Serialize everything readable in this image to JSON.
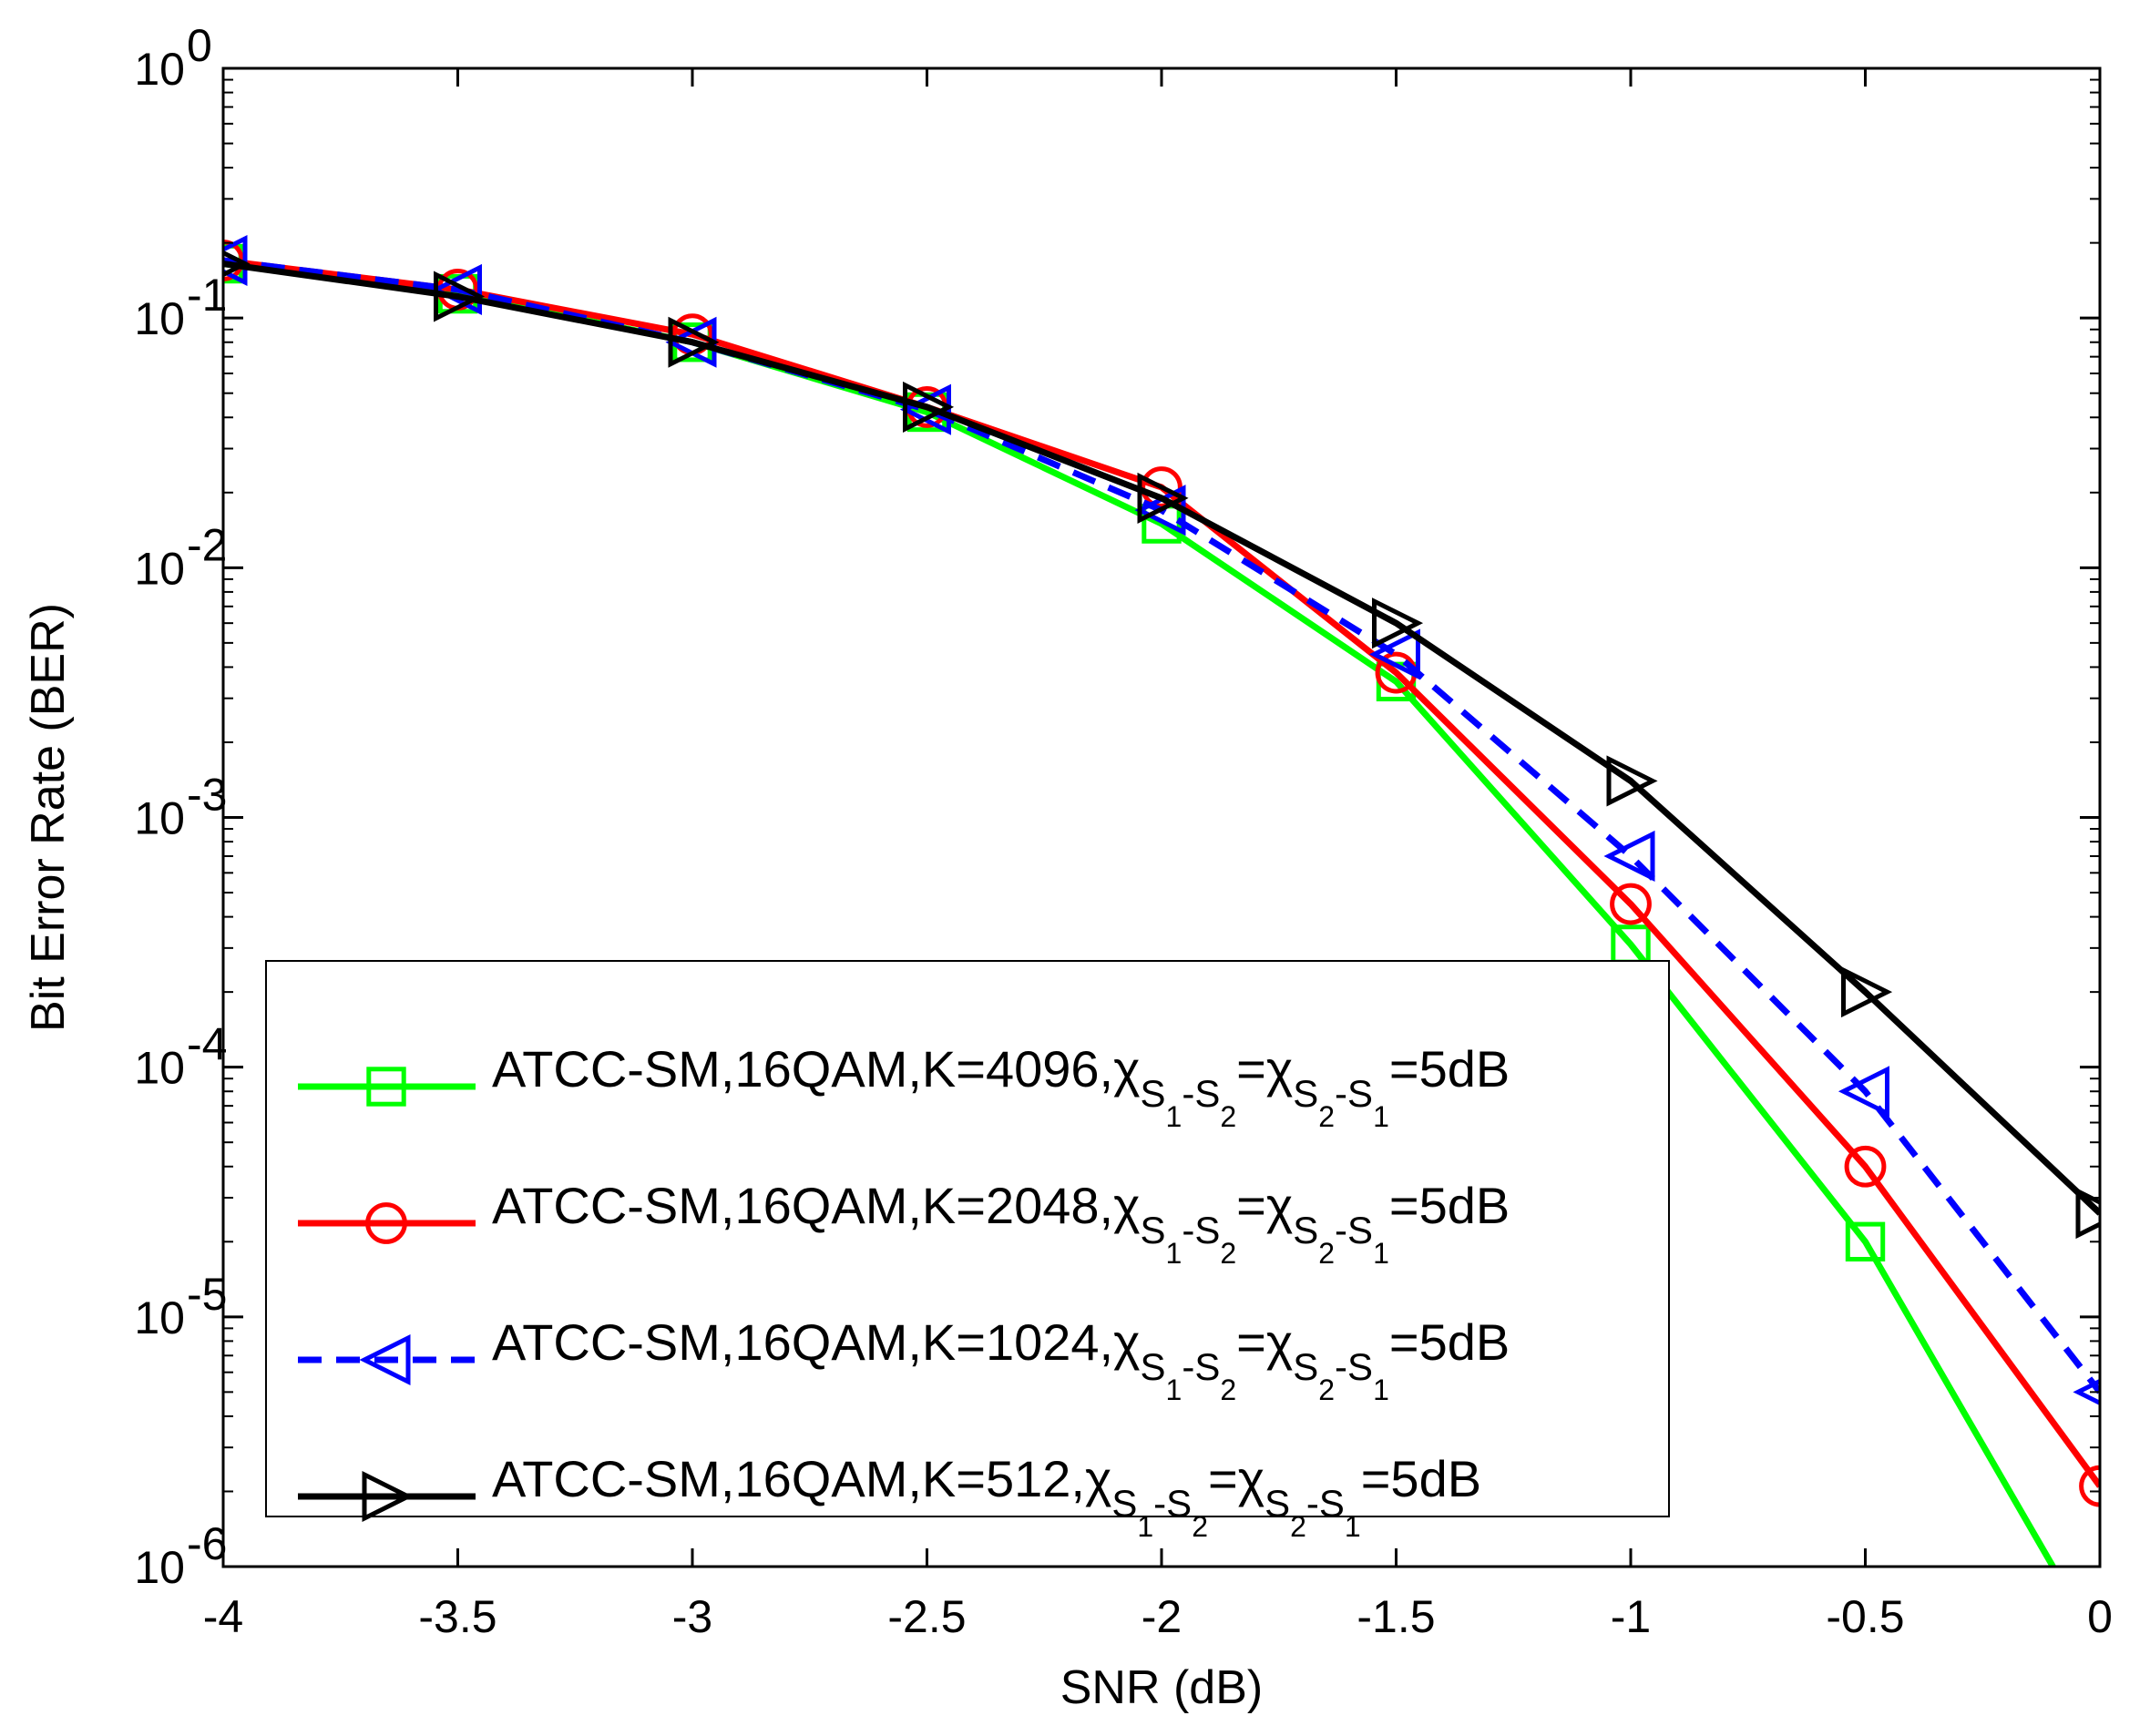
{
  "chart_data": {
    "type": "line",
    "title": "",
    "xlabel": "SNR (dB)",
    "ylabel": "Bit Error Rate (BER)",
    "xlim": [
      -4,
      0
    ],
    "ylim": [
      1e-06,
      1
    ],
    "yscale": "log",
    "grid": false,
    "legend_position": "bottom-left",
    "x_ticks": [
      -4,
      -3.5,
      -3,
      -2.5,
      -2,
      -1.5,
      -1,
      -0.5,
      0
    ],
    "x_tick_labels": [
      "-4",
      "-3.5",
      "-3",
      "-2.5",
      "-2",
      "-1.5",
      "-1",
      "-0.5",
      "0"
    ],
    "y_ticks": [
      {
        "value": 1,
        "base": "10",
        "exp": "0"
      },
      {
        "value": 0.1,
        "base": "10",
        "exp": "-1"
      },
      {
        "value": 0.01,
        "base": "10",
        "exp": "-2"
      },
      {
        "value": 0.001,
        "base": "10",
        "exp": "-3"
      },
      {
        "value": 0.0001,
        "base": "10",
        "exp": "-4"
      },
      {
        "value": 1e-05,
        "base": "10",
        "exp": "-5"
      },
      {
        "value": 1e-06,
        "base": "10",
        "exp": "-6"
      }
    ],
    "series": [
      {
        "name": "ATCC-SM,16QAM,K=4096",
        "legend": {
          "main": "ATCC-SM,16QAM,K=4096,",
          "chi": "χ",
          "s": "S",
          "one": "1",
          "two": "2",
          "dash": "-",
          "eq": "=",
          "tail": "=5dB"
        },
        "color": "#00ff00",
        "dash": "solid",
        "marker": "square",
        "x": [
          -4,
          -3.5,
          -3,
          -2.5,
          -2,
          -1.5,
          -1,
          -0.5,
          -0.1
        ],
        "y": [
          0.165,
          0.125,
          0.08,
          0.042,
          0.015,
          0.0035,
          0.00031,
          2e-05,
          1e-06
        ],
        "marker_count": 8
      },
      {
        "name": "ATCC-SM,16QAM,K=2048",
        "legend": {
          "main": "ATCC-SM,16QAM,K=2048,",
          "chi": "χ",
          "s": "S",
          "one": "1",
          "two": "2",
          "dash": "-",
          "eq": "=",
          "tail": "=5dB"
        },
        "color": "#ff0000",
        "dash": "solid",
        "marker": "circle",
        "x": [
          -4,
          -3.5,
          -3,
          -2.5,
          -2,
          -1.5,
          -1,
          -0.5,
          0
        ],
        "y": [
          0.17,
          0.13,
          0.086,
          0.044,
          0.021,
          0.0038,
          0.00045,
          4e-05,
          2.1e-06
        ],
        "marker_count": 9
      },
      {
        "name": "ATCC-SM,16QAM,K=1024",
        "legend": {
          "main": "ATCC-SM,16QAM,K=1024,",
          "chi": "χ",
          "s": "S",
          "one": "1",
          "two": "2",
          "dash": "-",
          "eq": "=",
          "tail": "=5dB"
        },
        "color": "#0000ff",
        "dash": "dashed",
        "marker": "triangle-left",
        "x": [
          -4,
          -3.5,
          -3,
          -2.5,
          -2,
          -1.5,
          -1,
          -0.5,
          0
        ],
        "y": [
          0.17,
          0.13,
          0.08,
          0.043,
          0.017,
          0.0045,
          0.0007,
          8e-05,
          5e-06
        ],
        "marker_count": 9
      },
      {
        "name": "ATCC-SM,16QAM,K=512",
        "legend": {
          "main": "ATCC-SM,16QAM,K=512,",
          "chi": "χ",
          "s": "S",
          "one": "1",
          "two": "2",
          "dash": "-",
          "eq": "=",
          "tail": "=5dB"
        },
        "color": "#000000",
        "dash": "solid",
        "marker": "triangle-right",
        "x": [
          -4,
          -3.5,
          -3,
          -2.5,
          -2,
          -1.5,
          -1,
          -0.5,
          0
        ],
        "y": [
          0.165,
          0.122,
          0.08,
          0.044,
          0.019,
          0.006,
          0.0014,
          0.0002,
          2.6e-05
        ],
        "marker_count": 9
      }
    ]
  }
}
